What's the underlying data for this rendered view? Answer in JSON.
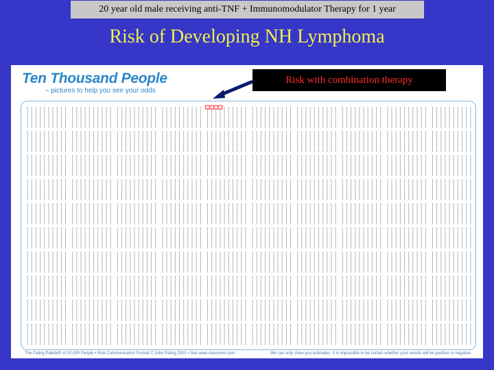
{
  "header": {
    "banner": "20 year old male receiving anti-TNF + Immunomodulator Therapy for 1 year",
    "title": "Risk of Developing NH Lymphoma"
  },
  "chart_card": {
    "brand_title": "Ten Thousand People",
    "brand_subtitle": "– pictures to help you see your odds",
    "callout": "Risk with combination therapy",
    "footer_left": "The Paling Palette® of 10,000 People  •  Risk Communication Format © John Paling 2001  •  See www.riskcomm.com",
    "footer_right": "We can only show you estimates. It is impossible to be certain whether your results will be positive or negative."
  },
  "grid": {
    "total_people": 10000,
    "highlighted_people": 4
  },
  "colors": {
    "slide_background": "#3636c8",
    "title_text": "#f0f050",
    "banner_background": "#c8c8c8",
    "brand_blue": "#2a86c8",
    "callout_background": "#000000",
    "callout_text": "#ff2a2a",
    "highlight": "#ff3b3b"
  }
}
